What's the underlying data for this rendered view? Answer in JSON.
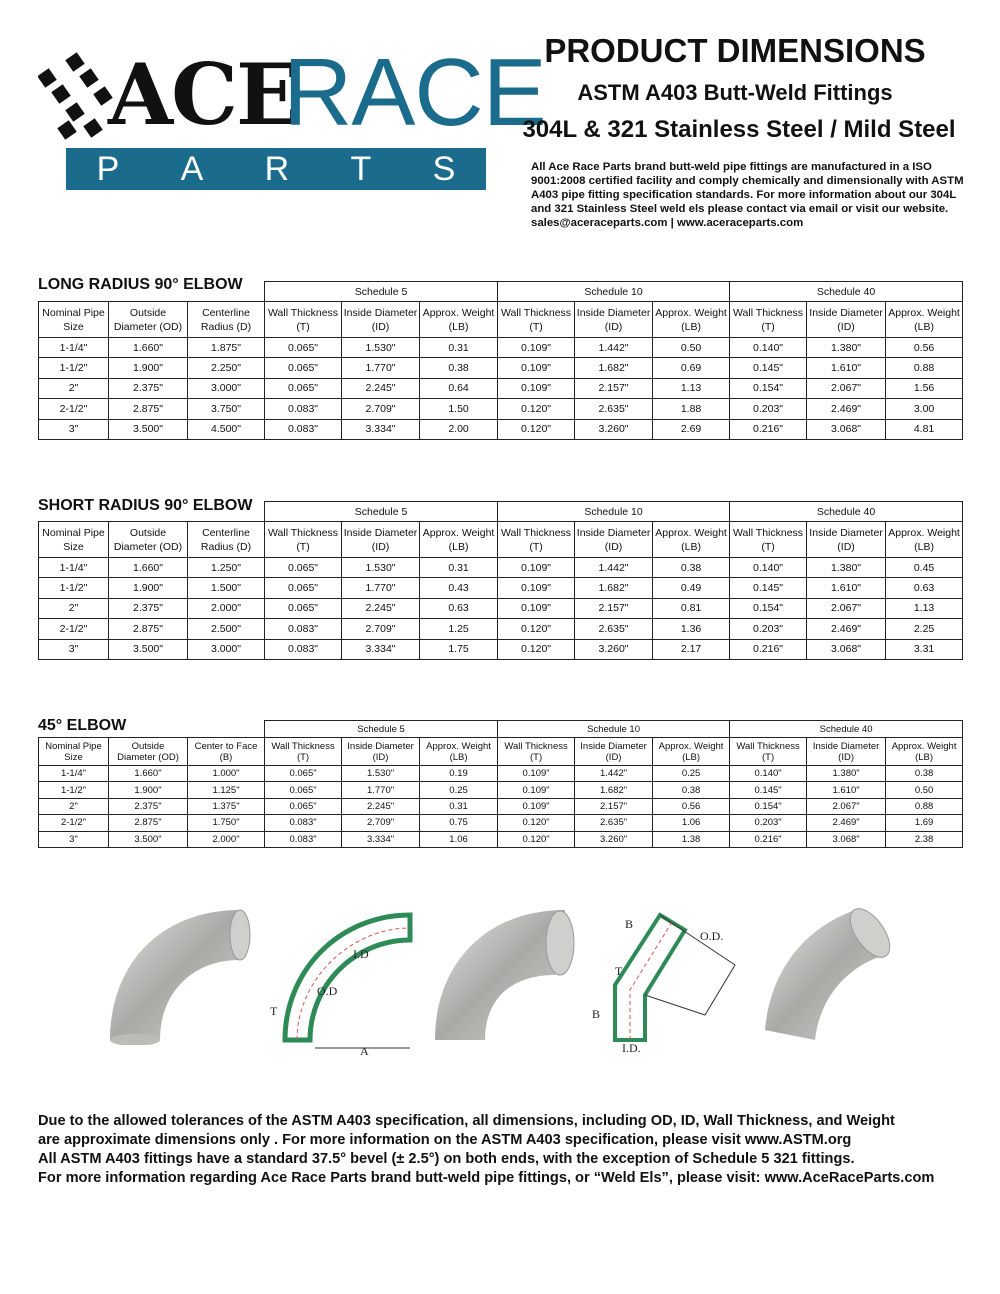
{
  "logo": {
    "ace": "ACE",
    "race": "RACE",
    "parts": [
      "P",
      "A",
      "R",
      "T",
      "S"
    ]
  },
  "header": {
    "title": "PRODUCT DIMENSIONS",
    "subtitle1": "ASTM A403 Butt-Weld Fittings",
    "subtitle2": "304L & 321 Stainless Steel / Mild Steel",
    "intro": "All Ace Race Parts brand butt-weld pipe fittings are manufactured in a ISO 9001:2008 certified facility and comply chemically and dimensionally with ASTM A403 pipe fitting specification standards. For more information about our 304L and 321 Stainless Steel weld els please contact via email or visit our website. sales@aceraceparts.com | www.aceraceparts.com"
  },
  "tables": [
    {
      "title": "LONG RADIUS 90° ELBOW",
      "schedules": [
        "Schedule 5",
        "Schedule 10",
        "Schedule 40"
      ],
      "columns": [
        [
          "Nominal Pipe",
          "Size"
        ],
        [
          "Outside",
          "Diameter (OD)"
        ],
        [
          "Centerline",
          "Radius (D)"
        ],
        [
          "Wall Thickness",
          "(T)"
        ],
        [
          "Inside Diameter",
          "(ID)"
        ],
        [
          "Approx. Weight",
          "(LB)"
        ],
        [
          "Wall Thickness",
          "(T)"
        ],
        [
          "Inside Diameter",
          "(ID)"
        ],
        [
          "Approx. Weight",
          "(LB)"
        ],
        [
          "Wall Thickness",
          "(T)"
        ],
        [
          "Inside Diameter",
          "(ID)"
        ],
        [
          "Approx. Weight",
          "(LB)"
        ]
      ],
      "rows": [
        [
          "1-1/4\"",
          "1.660\"",
          "1.875\"",
          "0.065\"",
          "1.530\"",
          "0.31",
          "0.109\"",
          "1.442\"",
          "0.50",
          "0.140\"",
          "1.380\"",
          "0.56"
        ],
        [
          "1-1/2\"",
          "1.900\"",
          "2.250\"",
          "0.065\"",
          "1.770\"",
          "0.38",
          "0.109\"",
          "1.682\"",
          "0.69",
          "0.145\"",
          "1.610\"",
          "0.88"
        ],
        [
          "2\"",
          "2.375\"",
          "3.000\"",
          "0.065\"",
          "2.245\"",
          "0.64",
          "0.109\"",
          "2.157\"",
          "1.13",
          "0.154\"",
          "2.067\"",
          "1.56"
        ],
        [
          "2-1/2\"",
          "2.875\"",
          "3.750\"",
          "0.083\"",
          "2.709\"",
          "1.50",
          "0.120\"",
          "2.635\"",
          "1.88",
          "0.203\"",
          "2.469\"",
          "3.00"
        ],
        [
          "3\"",
          "3.500\"",
          "4.500\"",
          "0.083\"",
          "3.334\"",
          "2.00",
          "0.120\"",
          "3.260\"",
          "2.69",
          "0.216\"",
          "3.068\"",
          "4.81"
        ]
      ]
    },
    {
      "title": "SHORT RADIUS 90° ELBOW",
      "schedules": [
        "Schedule 5",
        "Schedule 10",
        "Schedule 40"
      ],
      "columns": [
        [
          "Nominal Pipe",
          "Size"
        ],
        [
          "Outside",
          "Diameter (OD)"
        ],
        [
          "Centerline",
          "Radius (D)"
        ],
        [
          "Wall Thickness",
          "(T)"
        ],
        [
          "Inside Diameter",
          "(ID)"
        ],
        [
          "Approx. Weight",
          "(LB)"
        ],
        [
          "Wall Thickness",
          "(T)"
        ],
        [
          "Inside Diameter",
          "(ID)"
        ],
        [
          "Approx. Weight",
          "(LB)"
        ],
        [
          "Wall Thickness",
          "(T)"
        ],
        [
          "Inside Diameter",
          "(ID)"
        ],
        [
          "Approx. Weight",
          "(LB)"
        ]
      ],
      "rows": [
        [
          "1-1/4\"",
          "1.660\"",
          "1.250\"",
          "0.065\"",
          "1.530\"",
          "0.31",
          "0.109\"",
          "1.442\"",
          "0.38",
          "0.140\"",
          "1.380\"",
          "0.45"
        ],
        [
          "1-1/2\"",
          "1.900\"",
          "1.500\"",
          "0.065\"",
          "1.770\"",
          "0.43",
          "0.109\"",
          "1.682\"",
          "0.49",
          "0.145\"",
          "1.610\"",
          "0.63"
        ],
        [
          "2\"",
          "2.375\"",
          "2.000\"",
          "0.065\"",
          "2.245\"",
          "0.63",
          "0.109\"",
          "2.157\"",
          "0.81",
          "0.154\"",
          "2.067\"",
          "1.13"
        ],
        [
          "2-1/2\"",
          "2.875\"",
          "2.500\"",
          "0.083\"",
          "2.709\"",
          "1.25",
          "0.120\"",
          "2.635\"",
          "1.36",
          "0.203\"",
          "2.469\"",
          "2.25"
        ],
        [
          "3\"",
          "3.500\"",
          "3.000\"",
          "0.083\"",
          "3.334\"",
          "1.75",
          "0.120\"",
          "3.260\"",
          "2.17",
          "0.216\"",
          "3.068\"",
          "3.31"
        ]
      ]
    },
    {
      "title": "45° ELBOW",
      "schedules": [
        "Schedule 5",
        "Schedule 10",
        "Schedule 40"
      ],
      "columns": [
        [
          "Nominal Pipe",
          "Size"
        ],
        [
          "Outside",
          "Diameter (OD)"
        ],
        [
          "Center to Face",
          "(B)"
        ],
        [
          "Wall Thickness",
          "(T)"
        ],
        [
          "Inside Diameter",
          "(ID)"
        ],
        [
          "Approx. Weight",
          "(LB)"
        ],
        [
          "Wall Thickness",
          "(T)"
        ],
        [
          "Inside Diameter",
          "(ID)"
        ],
        [
          "Approx. Weight",
          "(LB)"
        ],
        [
          "Wall Thickness",
          "(T)"
        ],
        [
          "Inside Diameter",
          "(ID)"
        ],
        [
          "Approx. Weight",
          "(LB)"
        ]
      ],
      "rows": [
        [
          "1-1/4\"",
          "1.660\"",
          "1.000\"",
          "0.065\"",
          "1.530\"",
          "0.19",
          "0.109\"",
          "1.442\"",
          "0.25",
          "0.140\"",
          "1.380\"",
          "0.38"
        ],
        [
          "1-1/2\"",
          "1.900\"",
          "1.125\"",
          "0.065\"",
          "1.770\"",
          "0.25",
          "0.109\"",
          "1.682\"",
          "0.38",
          "0.145\"",
          "1.610\"",
          "0.50"
        ],
        [
          "2\"",
          "2.375\"",
          "1.375\"",
          "0.065\"",
          "2.245\"",
          "0.31",
          "0.109\"",
          "2.157\"",
          "0.56",
          "0.154\"",
          "2.067\"",
          "0.88"
        ],
        [
          "2-1/2\"",
          "2.875\"",
          "1.750\"",
          "0.083\"",
          "2.709\"",
          "0.75",
          "0.120\"",
          "2.635\"",
          "1.06",
          "0.203\"",
          "2.469\"",
          "1.69"
        ],
        [
          "3\"",
          "3.500\"",
          "2.000\"",
          "0.083\"",
          "3.334\"",
          "1.06",
          "0.120\"",
          "3.260\"",
          "1.38",
          "0.216\"",
          "3.068\"",
          "2.38"
        ]
      ]
    }
  ],
  "diagrams": {
    "d90": {
      "t": "T",
      "od": "O.D",
      "id": "I.D",
      "a": "A"
    },
    "d45": {
      "b1": "B",
      "od": "O.D.",
      "t": "T",
      "b2": "B",
      "id": "I.D."
    }
  },
  "footer": [
    "Due to the allowed tolerances of the ASTM A403 specification, all dimensions, including OD, ID, Wall Thickness, and Weight",
    "are approximate dimensions only . For more information on the ASTM A403 specification, please visit www.ASTM.org",
    "All ASTM A403 fittings have a standard 37.5° bevel (± 2.5°) on both ends, with the exception of Schedule 5 321 fittings.",
    "For more information regarding Ace Race Parts brand butt-weld pipe fittings, or “Weld Els”, please visit: www.AceRaceParts.com"
  ],
  "colors": {
    "brand": "#1a6b8c",
    "wall_hatch": "#2e8b57",
    "centerline": "#d9534f"
  }
}
